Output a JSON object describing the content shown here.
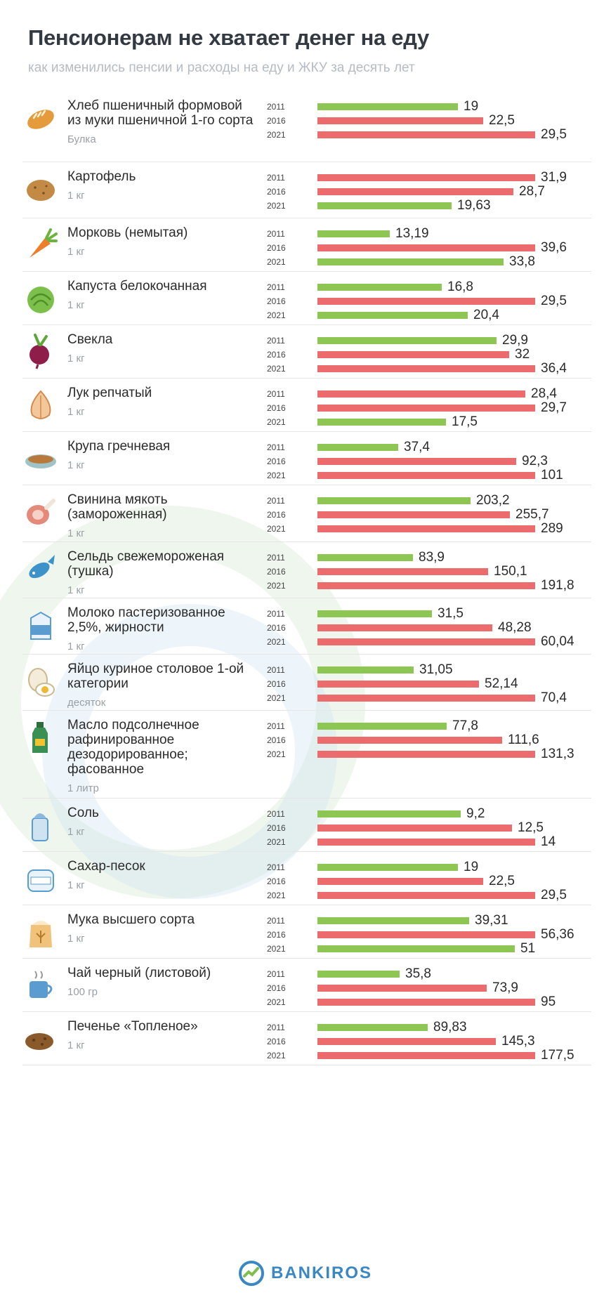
{
  "header": {
    "title": "Пенсионерам не хватает денег на еду",
    "subtitle": "как изменились пенсии и расходы на еду и ЖКУ за десять лет"
  },
  "colors": {
    "up": "#ec6c6e",
    "down": "#8dc653"
  },
  "footer": {
    "brand": "BANKIROS"
  },
  "chart_data": {
    "type": "bar",
    "orientation": "horizontal",
    "title": "Пенсионерам не хватает денег на еду",
    "subtitle": "как изменились пенсии и расходы на еду и ЖКУ за десять лет",
    "years": [
      "2011",
      "2016",
      "2021"
    ],
    "items": [
      {
        "name": "Хлеб пшеничный формовой из муки пшеничной 1-го сорта",
        "unit": "Булка",
        "icon": "bread-icon",
        "values": [
          19,
          22.5,
          29.5
        ],
        "labels": [
          "19",
          "22,5",
          "29,5"
        ],
        "colors": [
          "down",
          "up",
          "up"
        ]
      },
      {
        "name": "Картофель",
        "unit": "1 кг",
        "icon": "potato-icon",
        "values": [
          31.9,
          28.7,
          19.63
        ],
        "labels": [
          "31,9",
          "28,7",
          "19,63"
        ],
        "colors": [
          "up",
          "up",
          "down"
        ]
      },
      {
        "name": "Морковь (немытая)",
        "unit": "1 кг",
        "icon": "carrot-icon",
        "values": [
          13.19,
          39.6,
          33.8
        ],
        "labels": [
          "13,19",
          "39,6",
          "33,8"
        ],
        "colors": [
          "down",
          "up",
          "down"
        ]
      },
      {
        "name": "Капуста белокочанная",
        "unit": "1 кг",
        "icon": "cabbage-icon",
        "values": [
          16.8,
          29.5,
          20.4
        ],
        "labels": [
          "16,8",
          "29,5",
          "20,4"
        ],
        "colors": [
          "down",
          "up",
          "down"
        ]
      },
      {
        "name": "Свекла",
        "unit": "1 кг",
        "icon": "beet-icon",
        "values": [
          29.9,
          32,
          36.4
        ],
        "labels": [
          "29,9",
          "32",
          "36,4"
        ],
        "colors": [
          "down",
          "up",
          "up"
        ]
      },
      {
        "name": "Лук репчатый",
        "unit": "1 кг",
        "icon": "onion-icon",
        "values": [
          28.4,
          29.7,
          17.5
        ],
        "labels": [
          "28,4",
          "29,7",
          "17,5"
        ],
        "colors": [
          "up",
          "up",
          "down"
        ]
      },
      {
        "name": "Крупа гречневая",
        "unit": "1 кг",
        "icon": "buckwheat-icon",
        "values": [
          37.4,
          92.3,
          101
        ],
        "labels": [
          "37,4",
          "92,3",
          "101"
        ],
        "colors": [
          "down",
          "up",
          "up"
        ]
      },
      {
        "name": "Свинина мякоть (замороженная)",
        "unit": "1 кг",
        "icon": "pork-icon",
        "values": [
          203.2,
          255.7,
          289
        ],
        "labels": [
          "203,2",
          "255,7",
          "289"
        ],
        "colors": [
          "down",
          "up",
          "up"
        ]
      },
      {
        "name": "Сельдь свежемороженая (тушка)",
        "unit": "1 кг",
        "icon": "fish-icon",
        "values": [
          83.9,
          150.1,
          191.8
        ],
        "labels": [
          "83,9",
          "150,1",
          "191,8"
        ],
        "colors": [
          "down",
          "up",
          "up"
        ]
      },
      {
        "name": "Молоко пастеризованное 2,5%, жирности",
        "unit": "1 кг",
        "icon": "milk-icon",
        "values": [
          31.5,
          48.28,
          60.04
        ],
        "labels": [
          "31,5",
          "48,28",
          "60,04"
        ],
        "colors": [
          "down",
          "up",
          "up"
        ]
      },
      {
        "name": "Яйцо куриное столовое 1-ой категории",
        "unit": "десяток",
        "icon": "egg-icon",
        "values": [
          31.05,
          52.14,
          70.4
        ],
        "labels": [
          "31,05",
          "52,14",
          "70,4"
        ],
        "colors": [
          "down",
          "up",
          "up"
        ]
      },
      {
        "name": "Масло подсолнечное рафинированное дезодорированное; фасованное",
        "unit": "1 литр",
        "icon": "oil-bottle-icon",
        "values": [
          77.8,
          111.6,
          131.3
        ],
        "labels": [
          "77,8",
          "111,6",
          "131,3"
        ],
        "colors": [
          "down",
          "up",
          "up"
        ]
      },
      {
        "name": "Соль",
        "unit": "1 кг",
        "icon": "salt-icon",
        "values": [
          9.2,
          12.5,
          14
        ],
        "labels": [
          "9,2",
          "12,5",
          "14"
        ],
        "colors": [
          "down",
          "up",
          "up"
        ]
      },
      {
        "name": "Сахар-песок",
        "unit": "1 кг",
        "icon": "sugar-icon",
        "values": [
          19,
          22.5,
          29.5
        ],
        "labels": [
          "19",
          "22,5",
          "29,5"
        ],
        "colors": [
          "down",
          "up",
          "up"
        ]
      },
      {
        "name": "Мука высшего сорта",
        "unit": "1 кг",
        "icon": "flour-icon",
        "values": [
          39.31,
          56.36,
          51
        ],
        "labels": [
          "39,31",
          "56,36",
          "51"
        ],
        "colors": [
          "down",
          "up",
          "down"
        ]
      },
      {
        "name": "Чай черный (листовой)",
        "unit": "100 гр",
        "icon": "tea-icon",
        "values": [
          35.8,
          73.9,
          95
        ],
        "labels": [
          "35,8",
          "73,9",
          "95"
        ],
        "colors": [
          "down",
          "up",
          "up"
        ]
      },
      {
        "name": "Печенье «Топленое»",
        "unit": "1 кг",
        "icon": "cookie-icon",
        "values": [
          89.83,
          145.3,
          177.5
        ],
        "labels": [
          "89,83",
          "145,3",
          "177,5"
        ],
        "colors": [
          "down",
          "up",
          "up"
        ]
      }
    ]
  }
}
